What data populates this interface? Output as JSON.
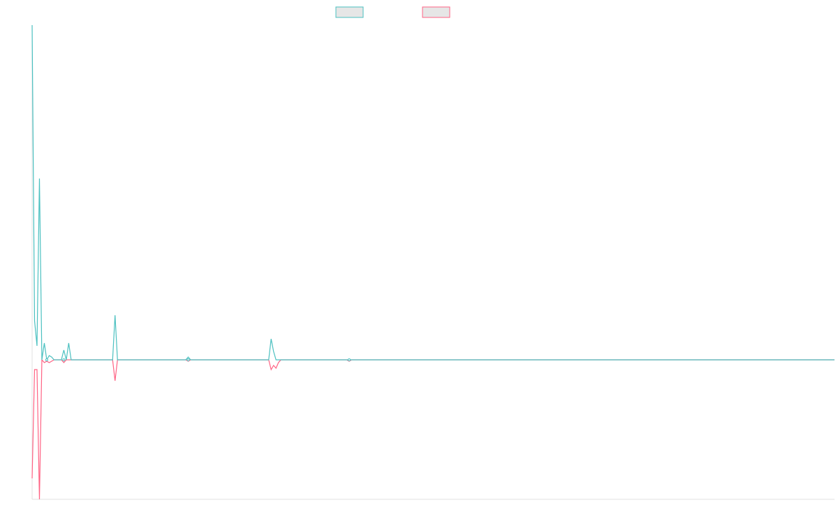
{
  "chart_data": {
    "type": "line",
    "title": "",
    "xlabel": "",
    "ylabel": "",
    "x_count": 330,
    "ylim": [
      -100,
      240
    ],
    "grid": false,
    "legend": {
      "placement": "top-center"
    },
    "series": [
      {
        "key": "positive",
        "name": "",
        "color": "#4bc0c0",
        "fill": "#e6e6e6",
        "points": [
          [
            0,
            240
          ],
          [
            1,
            28
          ],
          [
            2,
            10
          ],
          [
            3,
            130
          ],
          [
            4,
            0
          ],
          [
            5,
            12
          ],
          [
            6,
            0
          ],
          [
            7,
            3
          ],
          [
            8,
            2
          ],
          [
            9,
            0
          ],
          [
            12,
            0
          ],
          [
            13,
            7
          ],
          [
            14,
            0
          ],
          [
            15,
            12
          ],
          [
            16,
            0
          ],
          [
            33,
            0
          ],
          [
            34,
            32
          ],
          [
            35,
            0
          ],
          [
            63,
            0
          ],
          [
            64,
            2
          ],
          [
            65,
            0
          ],
          [
            97,
            0
          ],
          [
            98,
            15
          ],
          [
            99,
            6
          ],
          [
            100,
            0
          ],
          [
            101,
            0
          ],
          [
            102,
            0
          ],
          [
            129,
            0
          ],
          [
            130,
            0
          ],
          [
            131,
            0
          ],
          [
            329,
            0
          ]
        ]
      },
      {
        "key": "negative",
        "name": "",
        "color": "#ff6384",
        "fill": "#e6e6e6",
        "points": [
          [
            0,
            -85
          ],
          [
            1,
            -7
          ],
          [
            2,
            -7
          ],
          [
            3,
            -100
          ],
          [
            4,
            0
          ],
          [
            5,
            -2
          ],
          [
            6,
            -1
          ],
          [
            7,
            -2
          ],
          [
            8,
            -1
          ],
          [
            9,
            0
          ],
          [
            12,
            0
          ],
          [
            13,
            -2
          ],
          [
            14,
            0
          ],
          [
            15,
            0
          ],
          [
            33,
            0
          ],
          [
            34,
            -15
          ],
          [
            35,
            0
          ],
          [
            63,
            0
          ],
          [
            64,
            -1
          ],
          [
            65,
            0
          ],
          [
            97,
            0
          ],
          [
            98,
            -7
          ],
          [
            99,
            -4
          ],
          [
            100,
            -6
          ],
          [
            101,
            -2
          ],
          [
            102,
            0
          ],
          [
            129,
            0
          ],
          [
            130,
            -1
          ],
          [
            131,
            0
          ],
          [
            329,
            0
          ]
        ]
      }
    ]
  }
}
